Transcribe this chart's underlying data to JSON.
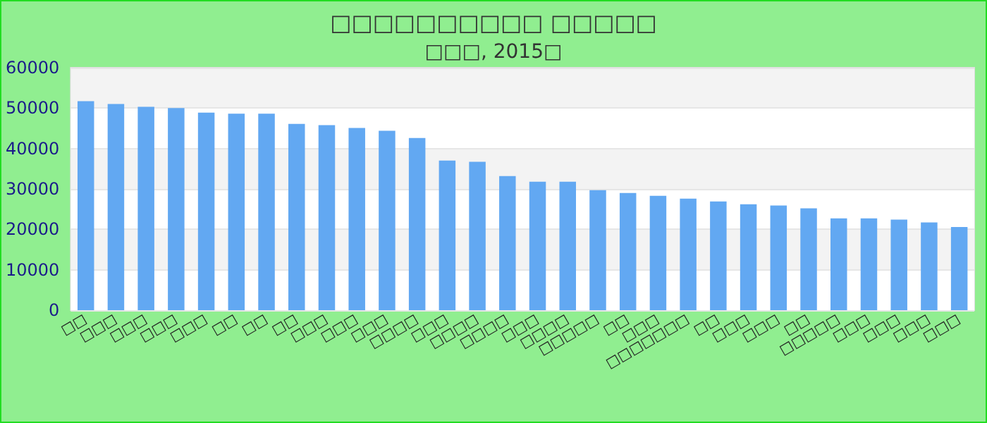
{
  "chart_data": {
    "type": "bar",
    "title": "□□□□□□□□□□ □□□□□",
    "subtitle": "□□□, 2015□",
    "categories": [
      "□□",
      "□□□",
      "□□□",
      "□□□",
      "□□□",
      "□□",
      "□□",
      "□□",
      "□□□",
      "□□□",
      "□□□",
      "□□□□",
      "□□□",
      "□□□□",
      "□□□□",
      "□□□",
      "□□□□",
      "□□□□□",
      "□□",
      "□□□",
      "□□□□□□□",
      "□□",
      "□□□",
      "□□□",
      "□□",
      "□□□□□",
      "□□□",
      "□□□",
      "□□□",
      "□□□"
    ],
    "values": [
      51700,
      51000,
      50300,
      50000,
      48900,
      48600,
      48600,
      46100,
      45800,
      45100,
      44400,
      42600,
      37000,
      36700,
      33200,
      31800,
      31800,
      29700,
      29000,
      28300,
      27600,
      26900,
      26200,
      25900,
      25200,
      22700,
      22700,
      22400,
      21700,
      20600
    ],
    "color": "#62a8f2",
    "ylim": [
      0,
      60000
    ],
    "yticks": [
      0,
      10000,
      20000,
      30000,
      40000,
      50000,
      60000
    ],
    "grid": "y"
  }
}
